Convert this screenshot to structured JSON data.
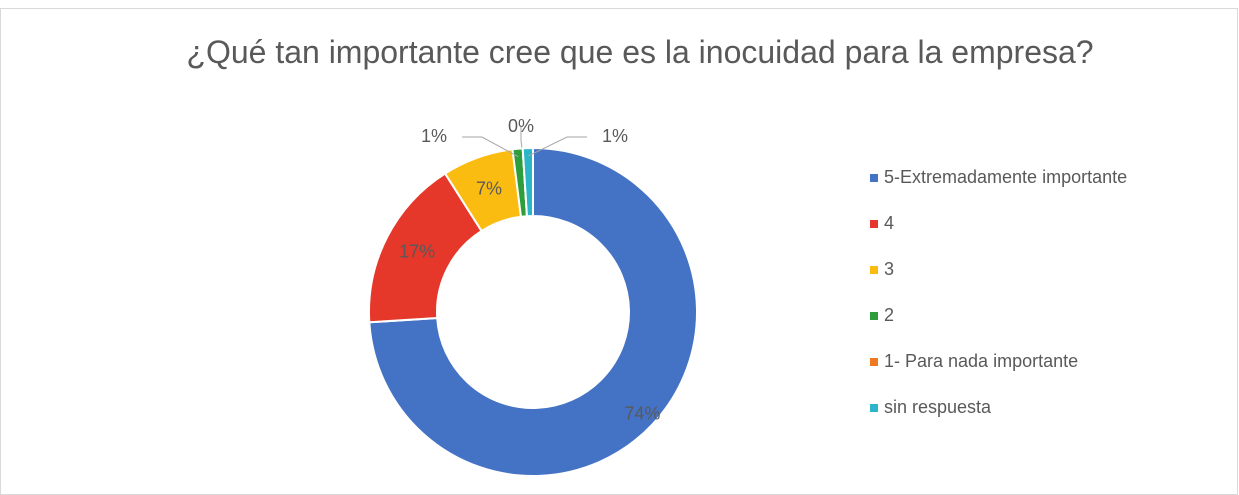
{
  "chart_data": {
    "type": "donut",
    "title": "¿Qué tan importante cree que es la inocuidad para la empresa?",
    "categories": [
      "5-Extremadamente importante",
      "4",
      "3",
      "2",
      "1- Para nada importante",
      "sin respuesta"
    ],
    "values": [
      74,
      17,
      7,
      1,
      0,
      1
    ],
    "value_labels": [
      "74%",
      "17%",
      "7%",
      "1%",
      "0%",
      "1%"
    ],
    "colors": [
      "#4472c4",
      "#e5372a",
      "#fbbc12",
      "#2e9e3c",
      "#f07a22",
      "#2bb5c8"
    ],
    "legend": "right"
  }
}
